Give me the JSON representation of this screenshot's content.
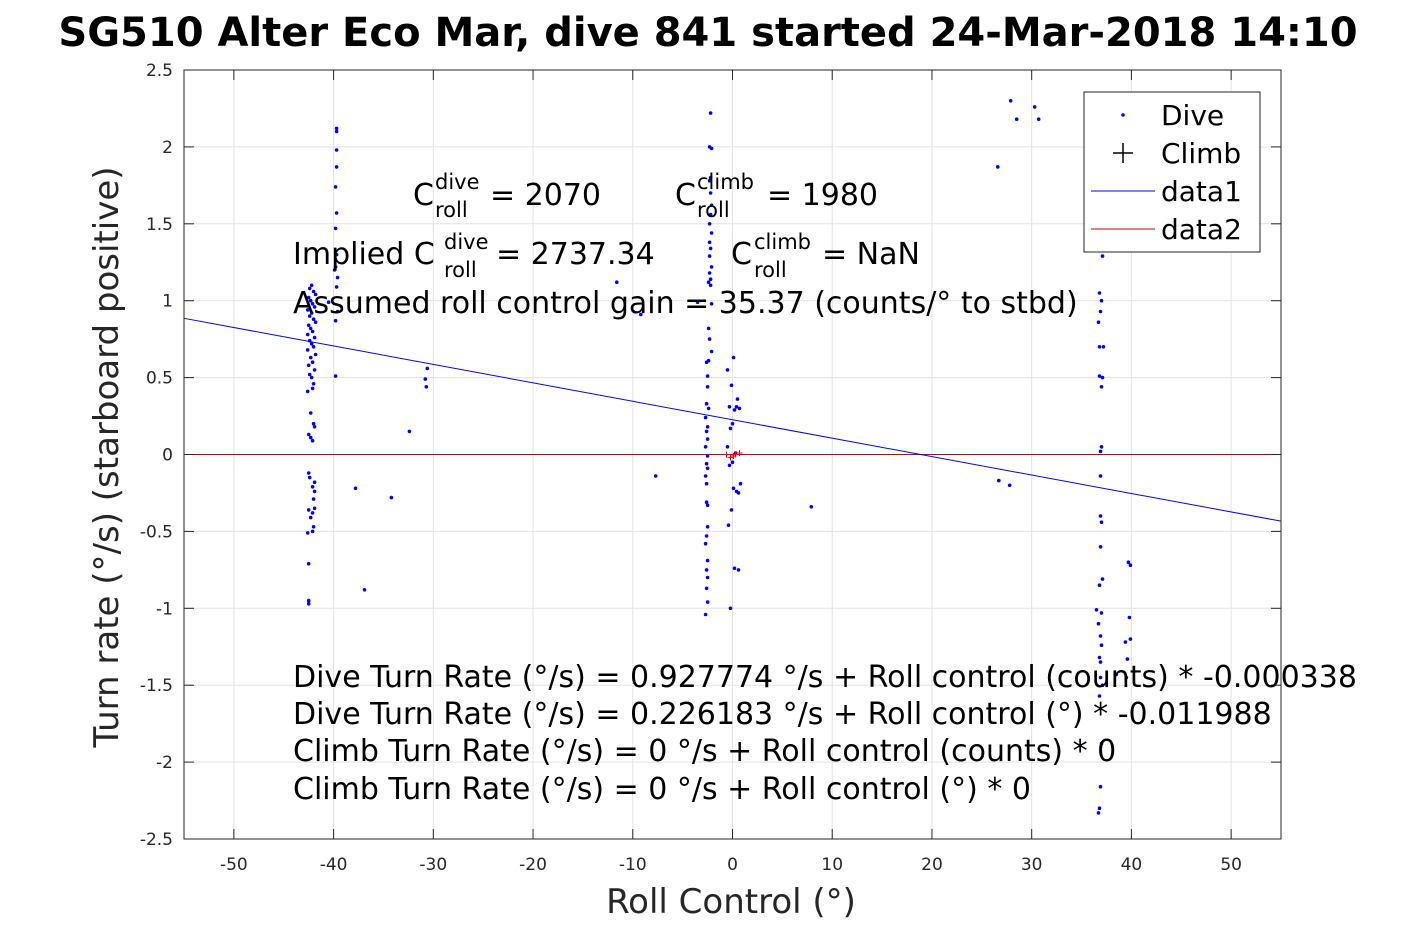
{
  "chart_data": {
    "type": "scatter",
    "title": "SG510 Alter Eco Mar, dive 841 started 24-Mar-2018 14:10",
    "xlabel": "Roll Control (°)",
    "ylabel": "Turn rate (°/s) (starboard positive)",
    "xlim": [
      -55,
      55
    ],
    "ylim": [
      -2.5,
      2.5
    ],
    "xticks": [
      -50,
      -40,
      -30,
      -20,
      -10,
      0,
      10,
      20,
      30,
      40,
      50
    ],
    "xtick_labels": [
      "-50",
      "-40",
      "-30",
      "-20",
      "-10",
      "0",
      "10",
      "20",
      "30",
      "40",
      "50"
    ],
    "yticks": [
      -2.5,
      -2,
      -1.5,
      -1,
      -0.5,
      0,
      0.5,
      1,
      1.5,
      2,
      2.5
    ],
    "ytick_labels": [
      "-2.5",
      "-2",
      "-1.5",
      "-1",
      "-0.5",
      "0",
      "0.5",
      "1",
      "1.5",
      "2",
      "2.5"
    ],
    "grid": true,
    "legend_position": "top-right",
    "legend": [
      "Dive",
      "Climb",
      "data1",
      "data2"
    ],
    "colors": {
      "dive": "#0000ff",
      "climb": "#ff0000",
      "data1": "#0000ff",
      "data2": "#cc0000"
    },
    "series": [
      {
        "name": "Dive",
        "marker": "point",
        "points": [
          [
            -42.5,
            -0.97
          ],
          [
            -42.5,
            -0.95
          ],
          [
            -42.5,
            -0.71
          ],
          [
            -42.6,
            -0.51
          ],
          [
            -42.1,
            -0.5
          ],
          [
            -42.0,
            -0.47
          ],
          [
            -42.3,
            -0.41
          ],
          [
            -42.1,
            -0.38
          ],
          [
            -42.5,
            -0.36
          ],
          [
            -41.9,
            -0.35
          ],
          [
            -42.0,
            -0.29
          ],
          [
            -41.9,
            -0.24
          ],
          [
            -42.1,
            -0.21
          ],
          [
            -41.9,
            -0.18
          ],
          [
            -42.4,
            -0.15
          ],
          [
            -42.5,
            -0.12
          ],
          [
            -42.1,
            0.09
          ],
          [
            -42.3,
            0.11
          ],
          [
            -42.5,
            0.13
          ],
          [
            -41.9,
            0.18
          ],
          [
            -42.0,
            0.2
          ],
          [
            -42.3,
            0.27
          ],
          [
            -42.6,
            0.41
          ],
          [
            -42.1,
            0.43
          ],
          [
            -42.0,
            0.46
          ],
          [
            -42.2,
            0.5
          ],
          [
            -42.4,
            0.52
          ],
          [
            -41.9,
            0.55
          ],
          [
            -42.5,
            0.58
          ],
          [
            -42.1,
            0.6
          ],
          [
            -42.3,
            0.63
          ],
          [
            -41.8,
            0.65
          ],
          [
            -42.6,
            0.68
          ],
          [
            -42.0,
            0.7
          ],
          [
            -42.2,
            0.72
          ],
          [
            -42.4,
            0.74
          ],
          [
            -41.9,
            0.76
          ],
          [
            -42.6,
            0.78
          ],
          [
            -42.1,
            0.8
          ],
          [
            -42.3,
            0.82
          ],
          [
            -42.5,
            0.84
          ],
          [
            -41.8,
            0.86
          ],
          [
            -42.0,
            0.88
          ],
          [
            -42.4,
            0.9
          ],
          [
            -42.2,
            0.92
          ],
          [
            -42.6,
            0.94
          ],
          [
            -41.9,
            0.96
          ],
          [
            -42.1,
            0.98
          ],
          [
            -42.3,
            1.0
          ],
          [
            -42.5,
            1.02
          ],
          [
            -41.8,
            1.04
          ],
          [
            -42.0,
            1.06
          ],
          [
            -42.4,
            1.08
          ],
          [
            -42.2,
            1.1
          ],
          [
            -40.5,
            0.99
          ],
          [
            -39.8,
            0.51
          ],
          [
            -39.8,
            0.87
          ],
          [
            -39.6,
            0.93
          ],
          [
            -39.7,
            1.09
          ],
          [
            -39.6,
            1.15
          ],
          [
            -39.9,
            1.2
          ],
          [
            -39.8,
            1.22
          ],
          [
            -39.7,
            1.3
          ],
          [
            -39.8,
            1.47
          ],
          [
            -39.7,
            1.57
          ],
          [
            -39.8,
            1.74
          ],
          [
            -39.7,
            1.87
          ],
          [
            -39.7,
            1.98
          ],
          [
            -39.7,
            2.1
          ],
          [
            -39.7,
            2.12
          ],
          [
            -37.8,
            -0.22
          ],
          [
            -36.9,
            -0.88
          ],
          [
            -34.2,
            -0.28
          ],
          [
            -32.4,
            0.15
          ],
          [
            -30.7,
            0.44
          ],
          [
            -30.8,
            0.49
          ],
          [
            -30.6,
            0.56
          ],
          [
            -11.6,
            1.12
          ],
          [
            -7.7,
            -0.14
          ],
          [
            -3.5,
            0.99
          ],
          [
            -9.2,
            0.91
          ],
          [
            -2.7,
            -1.04
          ],
          [
            -2.5,
            -0.96
          ],
          [
            -2.6,
            -0.87
          ],
          [
            -2.5,
            -0.8
          ],
          [
            -2.6,
            -0.75
          ],
          [
            -2.5,
            -0.69
          ],
          [
            -2.7,
            -0.58
          ],
          [
            -2.6,
            -0.53
          ],
          [
            -2.5,
            -0.47
          ],
          [
            -2.5,
            -0.33
          ],
          [
            -2.6,
            -0.31
          ],
          [
            -2.6,
            -0.19
          ],
          [
            -2.7,
            -0.14
          ],
          [
            -2.5,
            -0.09
          ],
          [
            -2.6,
            -0.06
          ],
          [
            -2.5,
            -0.01
          ],
          [
            -2.7,
            0.05
          ],
          [
            -2.5,
            0.1
          ],
          [
            -2.6,
            0.15
          ],
          [
            -2.5,
            0.18
          ],
          [
            -2.7,
            0.24
          ],
          [
            -2.4,
            0.3
          ],
          [
            -2.6,
            0.33
          ],
          [
            -2.5,
            0.44
          ],
          [
            -2.5,
            0.51
          ],
          [
            -2.6,
            0.6
          ],
          [
            -2.4,
            0.61
          ],
          [
            -2.3,
            0.75
          ],
          [
            -2.1,
            0.98
          ],
          [
            -2.2,
            1.1
          ],
          [
            -2.4,
            1.12
          ],
          [
            -2.2,
            1.14
          ],
          [
            -2.3,
            1.18
          ],
          [
            -2.1,
            1.22
          ],
          [
            -2.3,
            1.29
          ],
          [
            -2.2,
            1.34
          ],
          [
            -2.3,
            1.38
          ],
          [
            -2.1,
            1.44
          ],
          [
            -2.3,
            1.5
          ],
          [
            -2.2,
            1.56
          ],
          [
            -2.1,
            1.62
          ],
          [
            -2.2,
            1.7
          ],
          [
            -2.3,
            1.78
          ],
          [
            -2.2,
            1.8
          ],
          [
            -2.1,
            1.99
          ],
          [
            -2.3,
            2.0
          ],
          [
            -2.2,
            2.22
          ],
          [
            -2.1,
            0.67
          ],
          [
            -2.4,
            0.82
          ],
          [
            -0.2,
            -1.0
          ],
          [
            -0.4,
            -0.46
          ],
          [
            0.2,
            -0.74
          ],
          [
            0.6,
            -0.75
          ],
          [
            -0.1,
            -0.36
          ],
          [
            0.4,
            -0.24
          ],
          [
            0.1,
            -0.22
          ],
          [
            0.6,
            -0.25
          ],
          [
            0.8,
            -0.19
          ],
          [
            -0.3,
            -0.07
          ],
          [
            0.0,
            -0.05
          ],
          [
            0.3,
            0.01
          ],
          [
            -0.5,
            0.05
          ],
          [
            -0.2,
            0.17
          ],
          [
            0.0,
            0.2
          ],
          [
            0.2,
            0.29
          ],
          [
            0.4,
            0.31
          ],
          [
            0.7,
            0.3
          ],
          [
            0.5,
            0.36
          ],
          [
            -0.3,
            0.31
          ],
          [
            -0.5,
            0.55
          ],
          [
            0.1,
            0.63
          ],
          [
            -0.1,
            0.45
          ],
          [
            7.9,
            -0.34
          ],
          [
            26.7,
            -0.17
          ],
          [
            27.8,
            -0.2
          ],
          [
            26.6,
            1.87
          ],
          [
            27.9,
            2.3
          ],
          [
            28.5,
            2.18
          ],
          [
            30.3,
            2.26
          ],
          [
            30.7,
            2.18
          ],
          [
            36.7,
            -2.33
          ],
          [
            36.8,
            -2.3
          ],
          [
            36.9,
            -2.16
          ],
          [
            37.0,
            -1.88
          ],
          [
            36.8,
            -1.57
          ],
          [
            37.1,
            -1.5
          ],
          [
            36.9,
            -1.45
          ],
          [
            36.9,
            -1.35
          ],
          [
            36.8,
            -1.32
          ],
          [
            37.0,
            -1.24
          ],
          [
            36.9,
            -1.18
          ],
          [
            36.7,
            -1.1
          ],
          [
            37.0,
            -1.03
          ],
          [
            36.5,
            -1.01
          ],
          [
            36.8,
            -0.85
          ],
          [
            37.1,
            -0.81
          ],
          [
            36.9,
            -0.6
          ],
          [
            37.0,
            -0.44
          ],
          [
            36.9,
            -0.4
          ],
          [
            36.9,
            -0.14
          ],
          [
            36.9,
            0.02
          ],
          [
            37.0,
            0.05
          ],
          [
            37.0,
            0.44
          ],
          [
            36.8,
            0.51
          ],
          [
            37.1,
            0.5
          ],
          [
            36.8,
            0.7
          ],
          [
            37.2,
            0.7
          ],
          [
            36.7,
            0.86
          ],
          [
            36.9,
            0.93
          ],
          [
            37.0,
            1.0
          ],
          [
            36.8,
            1.05
          ],
          [
            37.1,
            1.29
          ],
          [
            39.7,
            -0.7
          ],
          [
            39.9,
            -0.72
          ],
          [
            39.8,
            -1.06
          ],
          [
            39.9,
            -1.2
          ],
          [
            39.4,
            -1.22
          ],
          [
            39.6,
            -1.33
          ],
          [
            39.5,
            -1.45
          ],
          [
            38.5,
            -1.43
          ]
        ]
      },
      {
        "name": "Climb",
        "marker": "plus",
        "points": [
          [
            -0.6,
            0.0
          ],
          [
            -0.2,
            -0.02
          ],
          [
            0.3,
            0.0
          ],
          [
            0.7,
            0.01
          ],
          [
            0.1,
            -0.01
          ]
        ]
      },
      {
        "name": "data1",
        "type": "line",
        "points": [
          [
            -55,
            0.8855
          ],
          [
            55,
            -0.4334
          ]
        ]
      },
      {
        "name": "data2",
        "type": "line",
        "points": [
          [
            -55,
            0
          ],
          [
            55,
            0
          ]
        ]
      }
    ],
    "annotations": {
      "c_dive_base": "C",
      "c_dive_sup": "dive",
      "c_dive_sub": "roll",
      "c_dive_value": " = 2070",
      "c_climb_base": "C",
      "c_climb_sup": "climb",
      "c_climb_sub": "roll",
      "c_climb_value": " = 1980",
      "implied_prefix": "Implied C",
      "implied_dive_sup": "dive",
      "implied_dive_sub": "roll",
      "implied_dive_value": " = 2737.34",
      "implied_climb_base": "C",
      "implied_climb_sup": "climb",
      "implied_climb_sub": "roll",
      "implied_climb_value": " = NaN",
      "gain": "Assumed roll control gain = 35.37 (counts/° to stbd)",
      "fit_lines": [
        "Dive Turn Rate (°/s) = 0.927774 °/s + Roll control (counts) * -0.000338",
        "Dive Turn Rate (°/s) = 0.226183 °/s + Roll control (°) * -0.011988",
        "Climb Turn Rate (°/s) = 0 °/s + Roll control (counts) * 0",
        "Climb Turn Rate (°/s) = 0 °/s + Roll control (°) * 0"
      ]
    }
  }
}
